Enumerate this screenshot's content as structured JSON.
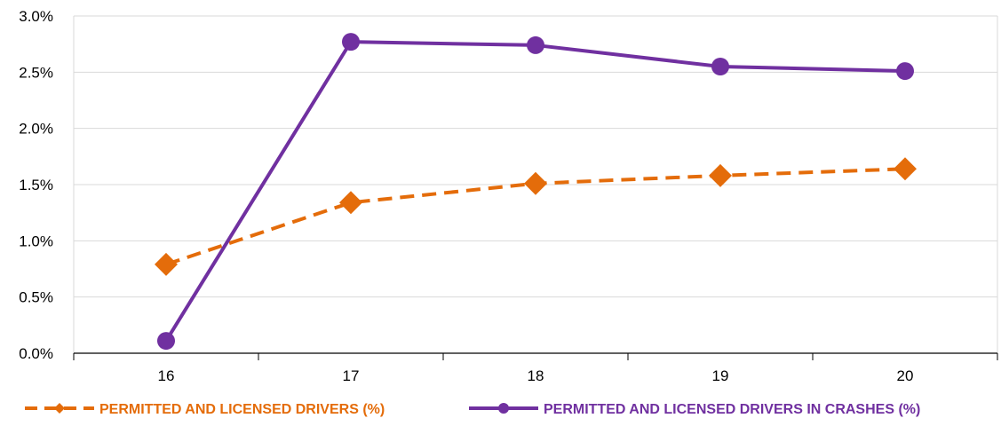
{
  "chart_data": {
    "type": "line",
    "categories": [
      "16",
      "17",
      "18",
      "19",
      "20"
    ],
    "ylim": [
      0,
      3.0
    ],
    "yticks": [
      "0.0%",
      "0.5%",
      "1.0%",
      "1.5%",
      "2.0%",
      "2.5%",
      "3.0%"
    ],
    "grid": "horizontal",
    "legend_position": "bottom",
    "title": "",
    "xlabel": "",
    "ylabel": "",
    "series": [
      {
        "name": "PERMITTED AND LICENSED DRIVERS (%)",
        "values": [
          0.79,
          1.34,
          1.51,
          1.58,
          1.64
        ],
        "color": "#E46C0A",
        "style": "dashed",
        "marker": "diamond"
      },
      {
        "name": "PERMITTED AND LICENSED DRIVERS IN CRASHES (%)",
        "values": [
          0.11,
          2.77,
          2.74,
          2.55,
          2.51
        ],
        "color": "#7030A0",
        "style": "solid",
        "marker": "circle"
      }
    ]
  }
}
